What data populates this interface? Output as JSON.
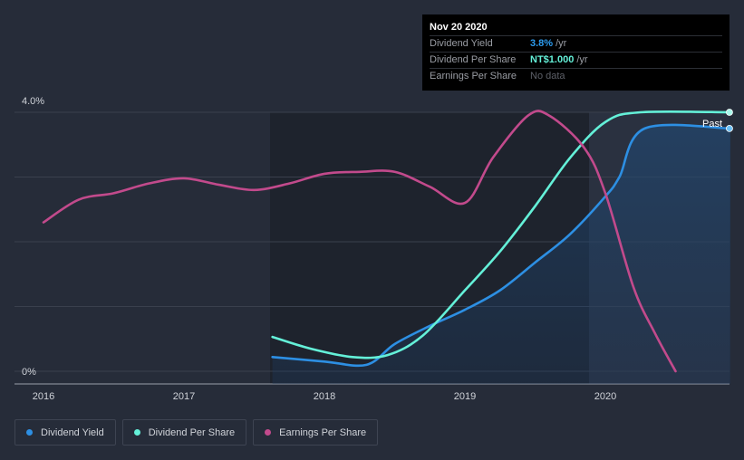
{
  "chart_data": {
    "type": "line",
    "title": "",
    "xlabel": "",
    "ylabel": "",
    "x_ticks": [
      "2016",
      "2017",
      "2018",
      "2019",
      "2020"
    ],
    "y_ticks": [
      "0%",
      "4.0%"
    ],
    "ylim": [
      0,
      4.0
    ],
    "xlim": [
      2016.0,
      2020.89
    ],
    "past_label": "Past",
    "series": [
      {
        "name": "Dividend Yield",
        "color": "#2d8fe3",
        "filled": true,
        "points": [
          [
            2017.63,
            0.22
          ],
          [
            2018.0,
            0.15
          ],
          [
            2018.3,
            0.1
          ],
          [
            2018.5,
            0.42
          ],
          [
            2018.75,
            0.7
          ],
          [
            2019.0,
            0.95
          ],
          [
            2019.25,
            1.25
          ],
          [
            2019.5,
            1.68
          ],
          [
            2019.75,
            2.12
          ],
          [
            2020.0,
            2.7
          ],
          [
            2020.1,
            3.0
          ],
          [
            2020.28,
            3.75
          ],
          [
            2020.89,
            3.75
          ]
        ]
      },
      {
        "name": "Dividend Per Share",
        "color": "#64f0d8",
        "filled": false,
        "points": [
          [
            2017.63,
            0.53
          ],
          [
            2017.9,
            0.35
          ],
          [
            2018.2,
            0.22
          ],
          [
            2018.45,
            0.25
          ],
          [
            2018.7,
            0.55
          ],
          [
            2019.0,
            1.25
          ],
          [
            2019.25,
            1.85
          ],
          [
            2019.5,
            2.55
          ],
          [
            2019.75,
            3.3
          ],
          [
            2020.0,
            3.85
          ],
          [
            2020.25,
            4.0
          ],
          [
            2020.89,
            4.0
          ]
        ]
      },
      {
        "name": "Earnings Per Share",
        "color": "#c24a8c",
        "filled": false,
        "points": [
          [
            2016.0,
            2.3
          ],
          [
            2016.25,
            2.65
          ],
          [
            2016.5,
            2.75
          ],
          [
            2016.75,
            2.9
          ],
          [
            2017.0,
            2.98
          ],
          [
            2017.25,
            2.88
          ],
          [
            2017.5,
            2.8
          ],
          [
            2017.75,
            2.9
          ],
          [
            2018.0,
            3.05
          ],
          [
            2018.25,
            3.08
          ],
          [
            2018.5,
            3.08
          ],
          [
            2018.75,
            2.85
          ],
          [
            2019.0,
            2.6
          ],
          [
            2019.2,
            3.3
          ],
          [
            2019.45,
            3.95
          ],
          [
            2019.6,
            3.95
          ],
          [
            2019.85,
            3.45
          ],
          [
            2020.0,
            2.75
          ],
          [
            2020.2,
            1.3
          ],
          [
            2020.35,
            0.6
          ],
          [
            2020.5,
            0.0
          ]
        ]
      }
    ],
    "tooltip": {
      "date": "Nov 20 2020",
      "rows": [
        {
          "label": "Dividend Yield",
          "value": "3.8%",
          "unit": "/yr"
        },
        {
          "label": "Dividend Per Share",
          "value": "NT$1.000",
          "unit": "/yr"
        },
        {
          "label": "Earnings Per Share",
          "value": "No data"
        }
      ]
    }
  },
  "legend": [
    {
      "label": "Dividend Yield",
      "color": "#2d8fe3"
    },
    {
      "label": "Dividend Per Share",
      "color": "#64f0d8"
    },
    {
      "label": "Earnings Per Share",
      "color": "#c24a8c"
    }
  ]
}
